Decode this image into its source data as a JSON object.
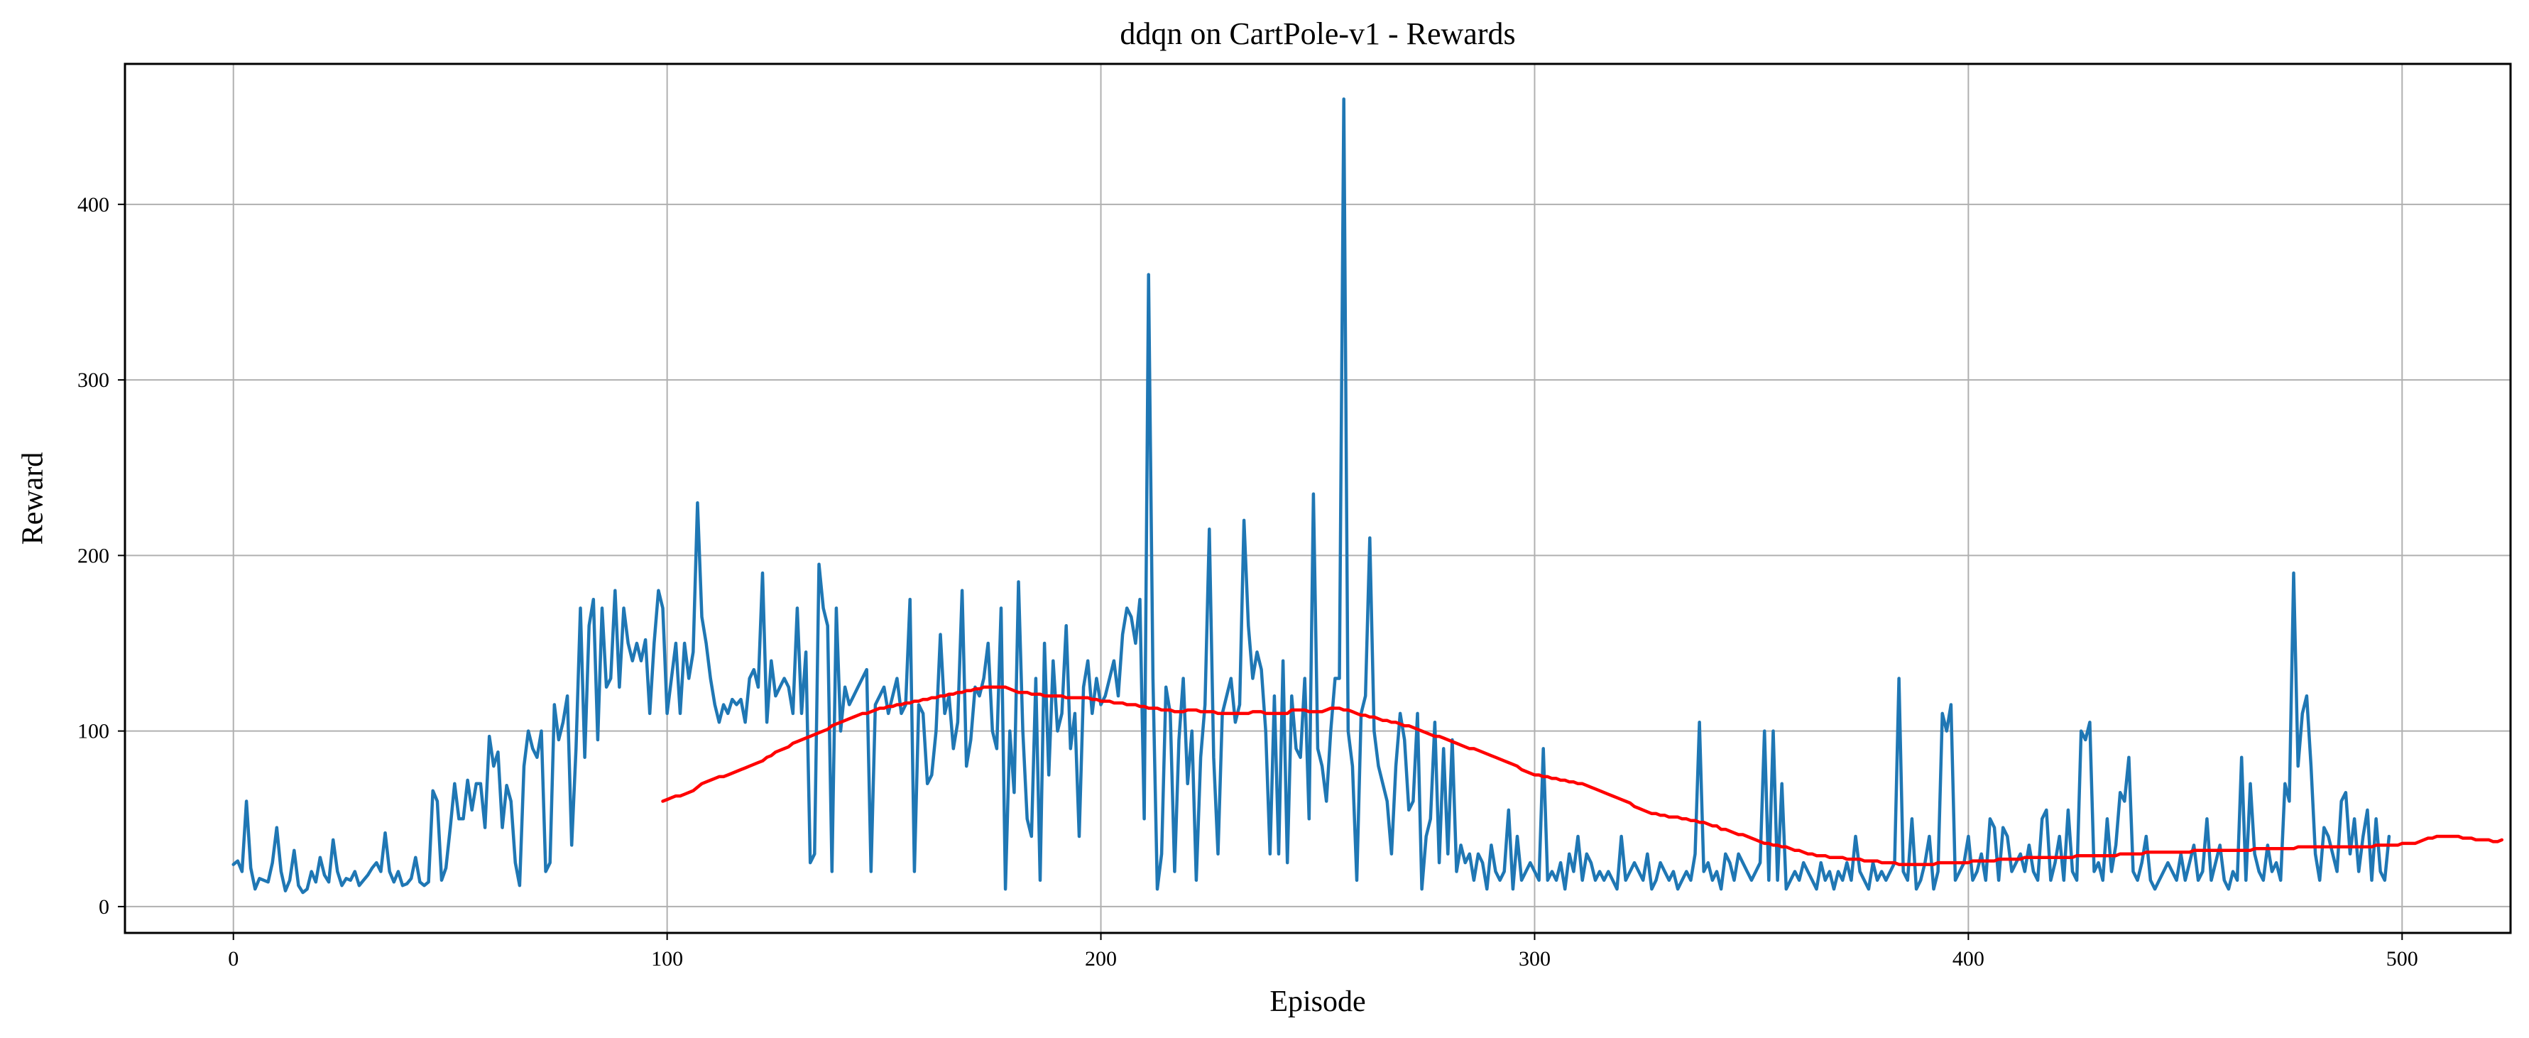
{
  "chart_data": {
    "type": "line",
    "title": "ddqn on CartPole-v1 - Rewards",
    "xlabel": "Episode",
    "ylabel": "Reward",
    "xlim": [
      -25,
      525
    ],
    "ylim": [
      -15,
      480
    ],
    "xticks": [
      0,
      100,
      200,
      300,
      400,
      500
    ],
    "yticks": [
      0,
      100,
      200,
      300,
      400
    ],
    "grid": true,
    "legend": "none",
    "colors": {
      "raw": "#1f77b4",
      "moving_average": "#ff0000",
      "grid": "#b0b0b0",
      "frame": "#000000"
    },
    "series": [
      {
        "x_start": 0,
        "x_step": 1,
        "values": [
          24,
          26,
          20,
          60,
          22,
          10,
          16,
          15,
          14,
          25,
          45,
          20,
          9,
          15,
          32,
          12,
          8,
          10,
          20,
          14,
          28,
          18,
          14,
          38,
          20,
          12,
          16,
          15,
          20,
          12,
          15,
          18,
          22,
          25,
          20,
          42,
          20,
          14,
          20,
          12,
          13,
          16,
          28,
          14,
          12,
          14,
          66,
          60,
          15,
          22,
          45,
          70,
          50,
          50,
          72,
          55,
          70,
          70,
          45,
          97,
          80,
          88,
          45,
          69,
          60,
          25,
          12,
          80,
          100,
          90,
          85,
          100,
          20,
          25,
          115,
          95,
          105,
          120,
          35,
          90,
          170,
          85,
          160,
          175,
          95,
          170,
          125,
          130,
          180,
          125,
          170,
          150,
          140,
          150,
          140,
          152,
          110,
          150,
          180,
          170,
          110,
          130,
          150,
          110,
          150,
          130,
          145,
          230,
          165,
          150,
          130,
          115,
          105,
          115,
          110,
          118,
          115,
          118,
          105,
          130,
          135,
          125,
          190,
          105,
          140,
          120,
          125,
          130,
          125,
          110,
          170,
          110,
          145,
          25,
          30,
          195,
          170,
          160,
          20,
          170,
          100,
          125,
          115,
          120,
          125,
          130,
          135,
          20,
          115,
          120,
          125,
          110,
          120,
          130,
          110,
          115,
          175,
          20,
          115,
          110,
          70,
          75,
          100,
          155,
          110,
          120,
          90,
          105,
          180,
          80,
          95,
          125,
          120,
          130,
          150,
          100,
          90,
          170,
          10,
          100,
          65,
          185,
          100,
          50,
          40,
          130,
          15,
          150,
          75,
          140,
          100,
          110,
          160,
          90,
          110,
          40,
          125,
          140,
          110,
          130,
          115,
          120,
          130,
          140,
          120,
          155,
          170,
          165,
          150,
          175,
          50,
          360,
          130,
          10,
          30,
          125,
          110,
          20,
          95,
          130,
          70,
          100,
          15,
          85,
          115,
          215,
          85,
          30,
          110,
          120,
          130,
          105,
          115,
          220,
          160,
          130,
          145,
          135,
          100,
          30,
          120,
          30,
          140,
          25,
          120,
          90,
          85,
          130,
          50,
          235,
          90,
          80,
          60,
          100,
          130,
          130,
          460,
          100,
          80,
          15,
          110,
          120,
          210,
          100,
          80,
          70,
          60,
          30,
          80,
          110,
          95,
          55,
          60,
          110,
          10,
          40,
          50,
          105,
          25,
          90,
          30,
          95,
          20,
          35,
          25,
          30,
          15,
          30,
          25,
          10,
          35,
          20,
          15,
          20,
          55,
          10,
          40,
          15,
          20,
          25,
          20,
          15,
          90,
          15,
          20,
          15,
          25,
          10,
          30,
          20,
          40,
          15,
          30,
          25,
          15,
          20,
          15,
          20,
          15,
          10,
          40,
          15,
          20,
          25,
          20,
          15,
          30,
          10,
          15,
          25,
          20,
          15,
          20,
          10,
          15,
          20,
          15,
          30,
          105,
          20,
          25,
          15,
          20,
          10,
          30,
          25,
          15,
          30,
          25,
          20,
          15,
          20,
          25,
          100,
          15,
          100,
          15,
          70,
          10,
          15,
          20,
          15,
          25,
          20,
          15,
          10,
          25,
          15,
          20,
          10,
          20,
          15,
          25,
          15,
          40,
          20,
          15,
          10,
          25,
          15,
          20,
          15,
          20,
          25,
          130,
          20,
          15,
          50,
          10,
          15,
          25,
          40,
          10,
          20,
          110,
          100,
          115,
          15,
          20,
          25,
          40,
          15,
          20,
          30,
          15,
          50,
          45,
          15,
          45,
          40,
          20,
          25,
          30,
          20,
          35,
          20,
          15,
          50,
          55,
          15,
          25,
          40,
          15,
          55,
          20,
          15,
          100,
          95,
          105,
          20,
          25,
          15,
          50,
          20,
          35,
          65,
          60,
          85,
          20,
          15,
          25,
          40,
          15,
          10,
          15,
          20,
          25,
          20,
          15,
          30,
          15,
          25,
          35,
          15,
          20,
          50,
          15,
          25,
          35,
          15,
          10,
          20,
          15,
          85,
          15,
          70,
          30,
          20,
          15,
          35,
          20,
          25,
          15,
          70,
          60,
          190,
          80,
          110,
          120,
          80,
          30,
          15,
          45,
          40,
          30,
          20,
          60,
          65,
          30,
          50,
          20,
          40,
          55,
          15,
          50,
          20,
          15,
          40
        ]
      },
      {
        "x_start": 99,
        "x_step": 1,
        "values": [
          60,
          61,
          62,
          63,
          63,
          64,
          65,
          66,
          68,
          70,
          71,
          72,
          73,
          74,
          74,
          75,
          76,
          77,
          78,
          79,
          80,
          81,
          82,
          83,
          85,
          86,
          88,
          89,
          90,
          91,
          93,
          94,
          95,
          96,
          97,
          98,
          99,
          100,
          101,
          103,
          104,
          105,
          106,
          107,
          108,
          109,
          110,
          110,
          111,
          112,
          113,
          113,
          114,
          114,
          115,
          115,
          116,
          116,
          117,
          117,
          118,
          118,
          119,
          119,
          120,
          120,
          121,
          121,
          122,
          122,
          123,
          123,
          124,
          124,
          125,
          125,
          125,
          125,
          125,
          125,
          124,
          123,
          122,
          122,
          122,
          121,
          121,
          121,
          120,
          120,
          120,
          120,
          120,
          119,
          119,
          119,
          119,
          119,
          119,
          118,
          118,
          117,
          117,
          117,
          116,
          116,
          116,
          115,
          115,
          115,
          114,
          114,
          113,
          113,
          113,
          112,
          112,
          112,
          111,
          111,
          111,
          112,
          112,
          112,
          111,
          111,
          111,
          111,
          110,
          110,
          110,
          110,
          110,
          110,
          110,
          110,
          111,
          111,
          111,
          110,
          110,
          110,
          110,
          110,
          110,
          112,
          112,
          112,
          112,
          111,
          111,
          111,
          111,
          112,
          113,
          113,
          113,
          112,
          112,
          111,
          110,
          109,
          109,
          108,
          108,
          107,
          106,
          106,
          105,
          105,
          104,
          103,
          103,
          102,
          101,
          100,
          99,
          98,
          97,
          97,
          96,
          95,
          94,
          93,
          92,
          91,
          90,
          90,
          89,
          88,
          87,
          86,
          85,
          84,
          83,
          82,
          81,
          80,
          78,
          77,
          76,
          75,
          75,
          74,
          74,
          73,
          73,
          72,
          72,
          71,
          71,
          70,
          70,
          69,
          68,
          67,
          66,
          65,
          64,
          63,
          62,
          61,
          60,
          59,
          57,
          56,
          55,
          54,
          53,
          53,
          52,
          52,
          51,
          51,
          51,
          50,
          50,
          49,
          49,
          48,
          48,
          47,
          46,
          46,
          44,
          44,
          43,
          42,
          41,
          41,
          40,
          39,
          38,
          37,
          36,
          36,
          35,
          35,
          34,
          34,
          33,
          32,
          32,
          31,
          30,
          30,
          29,
          29,
          29,
          28,
          28,
          28,
          28,
          27,
          27,
          27,
          27,
          26,
          26,
          26,
          26,
          25,
          25,
          25,
          25,
          24,
          24,
          24,
          24,
          24,
          24,
          24,
          24,
          24,
          25,
          25,
          25,
          25,
          25,
          25,
          25,
          25,
          26,
          26,
          26,
          26,
          26,
          26,
          27,
          27,
          27,
          27,
          27,
          27,
          28,
          28,
          28,
          28,
          28,
          28,
          28,
          28,
          28,
          28,
          28,
          28,
          29,
          29,
          29,
          29,
          29,
          29,
          29,
          29,
          29,
          29,
          30,
          30,
          30,
          30,
          30,
          30,
          31,
          31,
          31,
          31,
          31,
          31,
          31,
          31,
          31,
          31,
          31,
          32,
          32,
          32,
          32,
          32,
          32,
          32,
          32,
          32,
          32,
          32,
          32,
          32,
          32,
          33,
          33,
          33,
          33,
          33,
          33,
          33,
          33,
          33,
          33,
          34,
          34,
          34,
          34,
          34,
          34,
          34,
          34,
          34,
          34,
          34,
          34,
          34,
          34,
          34,
          34,
          34,
          34,
          35,
          35,
          35,
          35,
          35,
          35,
          36,
          36,
          36,
          36,
          37,
          38,
          39,
          39,
          40,
          40,
          40,
          40,
          40,
          40,
          39,
          39,
          39,
          38,
          38,
          38,
          38,
          37,
          37,
          38
        ]
      }
    ]
  }
}
